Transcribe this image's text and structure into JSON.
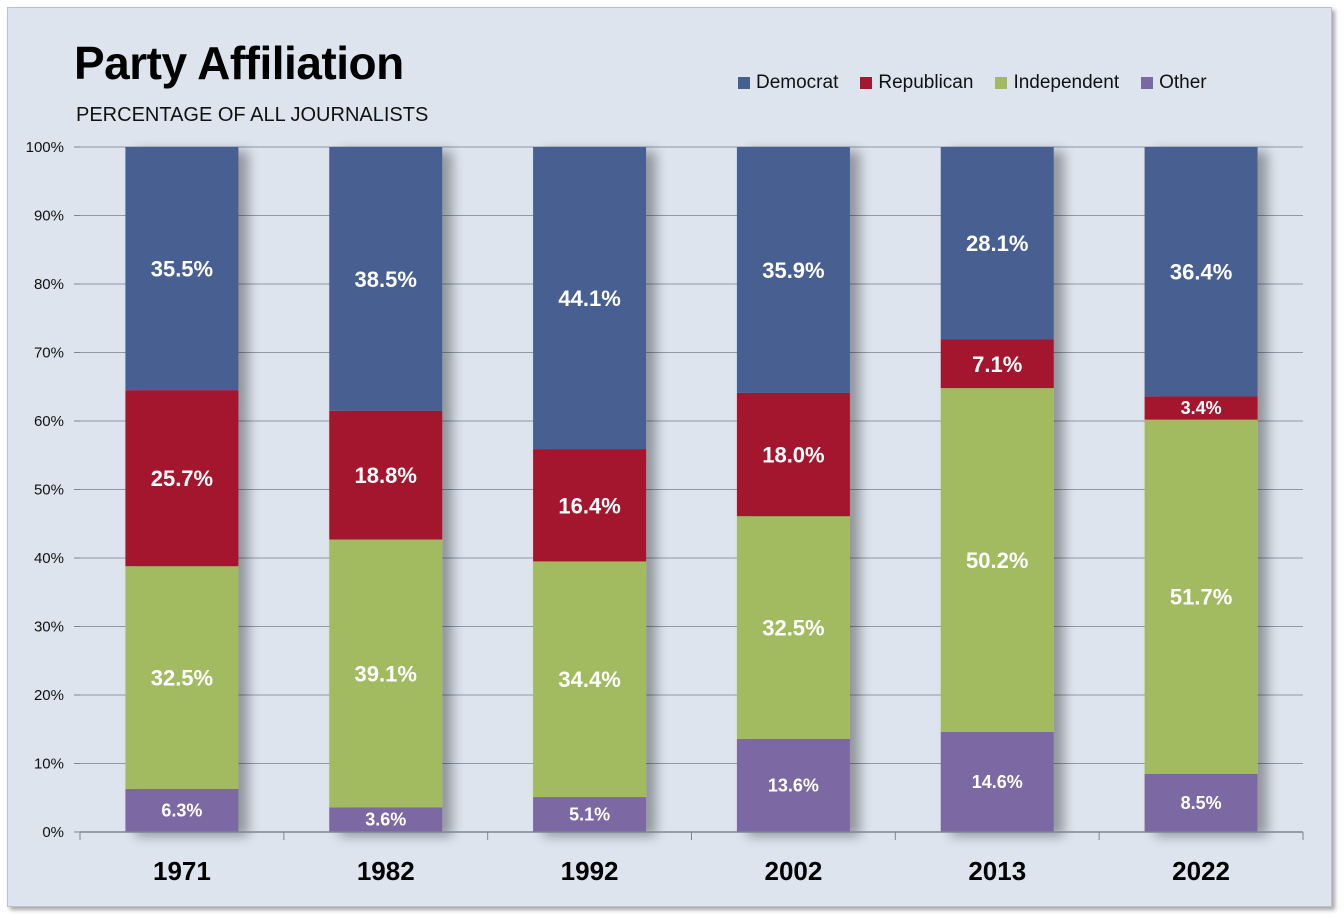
{
  "chart_data": {
    "type": "bar",
    "stacked": true,
    "title": "Party Affiliation",
    "subtitle": "PERCENTAGE OF ALL JOURNALISTS",
    "categories": [
      "1971",
      "1982",
      "1992",
      "2002",
      "2013",
      "2022"
    ],
    "ylim": [
      0,
      100
    ],
    "yticks": [
      "0%",
      "10%",
      "20%",
      "30%",
      "40%",
      "50%",
      "60%",
      "70%",
      "80%",
      "90%",
      "100%"
    ],
    "grid": true,
    "legend_position": "top-right",
    "series": [
      {
        "name": "Other",
        "color": "#7b67a3",
        "values": [
          6.3,
          3.6,
          5.1,
          13.6,
          14.6,
          8.5
        ],
        "labels": [
          "6.3%",
          "3.6%",
          "5.1%",
          "13.6%",
          "14.6%",
          "8.5%"
        ]
      },
      {
        "name": "Independent",
        "color": "#a2bb61",
        "values": [
          32.5,
          39.1,
          34.4,
          32.5,
          50.2,
          51.7
        ],
        "labels": [
          "32.5%",
          "39.1%",
          "34.4%",
          "32.5%",
          "50.2%",
          "51.7%"
        ]
      },
      {
        "name": "Republican",
        "color": "#a3182f",
        "values": [
          25.7,
          18.8,
          16.4,
          18.0,
          7.1,
          3.4
        ],
        "labels": [
          "25.7%",
          "18.8%",
          "16.4%",
          "18.0%",
          "7.1%",
          "3.4%"
        ]
      },
      {
        "name": "Democrat",
        "color": "#465f91",
        "values": [
          35.5,
          38.5,
          44.1,
          35.9,
          28.1,
          36.4
        ],
        "labels": [
          "35.5%",
          "38.5%",
          "44.1%",
          "35.9%",
          "28.1%",
          "36.4%"
        ]
      }
    ],
    "legend_order": [
      "Democrat",
      "Republican",
      "Independent",
      "Other"
    ]
  }
}
